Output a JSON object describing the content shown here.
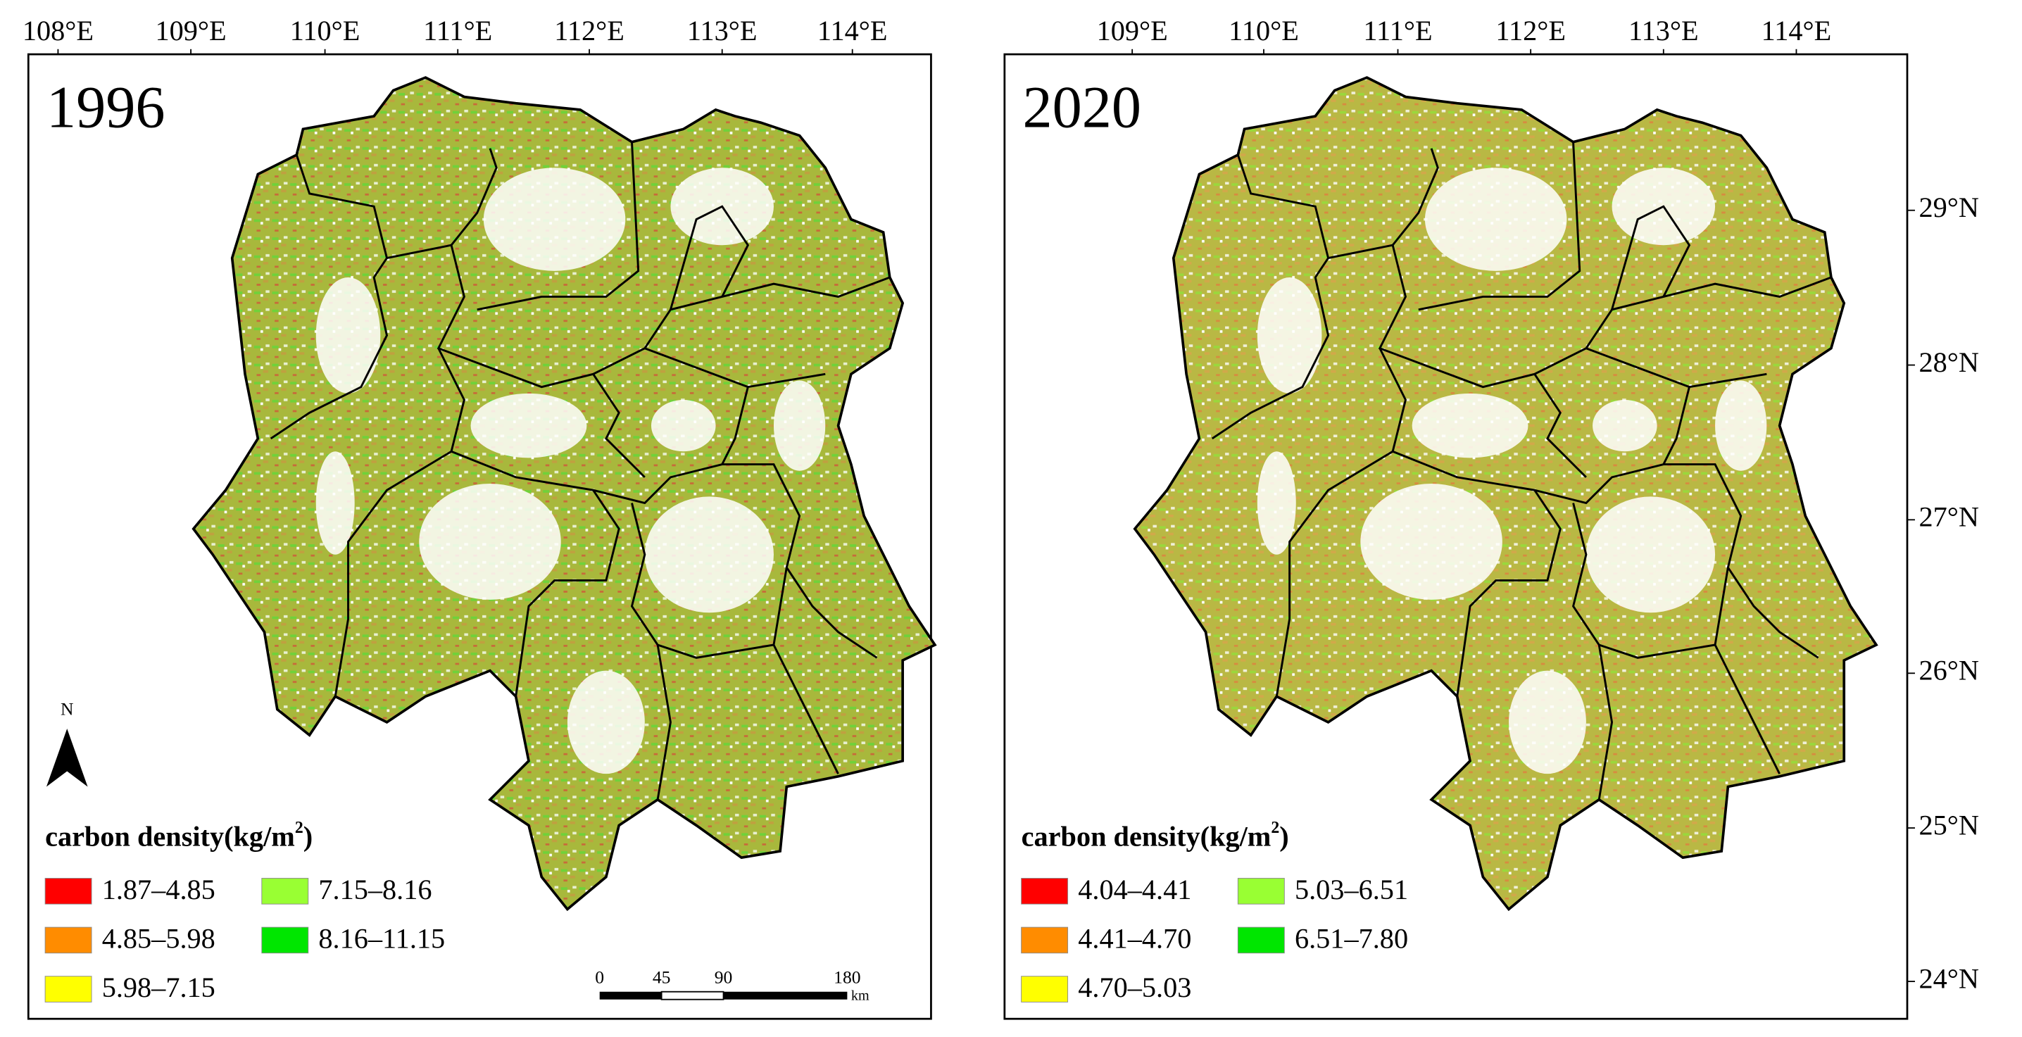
{
  "panels": [
    {
      "year": "1996",
      "lon_labels": [
        "108°E",
        "109°E",
        "110°E",
        "111°E",
        "112°E",
        "113°E",
        "114°E"
      ],
      "legend": {
        "title": "carbon density(kg/m",
        "title_sup": "2",
        "title_end": ")",
        "items": [
          {
            "label": "1.87–4.85",
            "color": "#ff0000"
          },
          {
            "label": "4.85–5.98",
            "color": "#ff8c00"
          },
          {
            "label": "5.98–7.15",
            "color": "#ffff00"
          },
          {
            "label": "7.15–8.16",
            "color": "#99ff33"
          },
          {
            "label": "8.16–11.15",
            "color": "#00e600"
          }
        ]
      },
      "north": "N",
      "scale_bar": {
        "labels": [
          "0",
          "45",
          "90",
          "180"
        ],
        "unit": "km"
      }
    },
    {
      "year": "2020",
      "lon_labels": [
        "109°E",
        "110°E",
        "111°E",
        "112°E",
        "113°E",
        "114°E"
      ],
      "lat_labels": [
        "29°N",
        "28°N",
        "27°N",
        "26°N",
        "25°N",
        "24°N"
      ],
      "legend": {
        "title": "carbon density(kg/m",
        "title_sup": "2",
        "title_end": ")",
        "items": [
          {
            "label": "4.04–4.41",
            "color": "#ff0000"
          },
          {
            "label": "4.41–4.70",
            "color": "#ff8c00"
          },
          {
            "label": "4.70–5.03",
            "color": "#ffff00"
          },
          {
            "label": "5.03–6.51",
            "color": "#99ff33"
          },
          {
            "label": "6.51–7.80",
            "color": "#00e600"
          }
        ]
      }
    }
  ]
}
